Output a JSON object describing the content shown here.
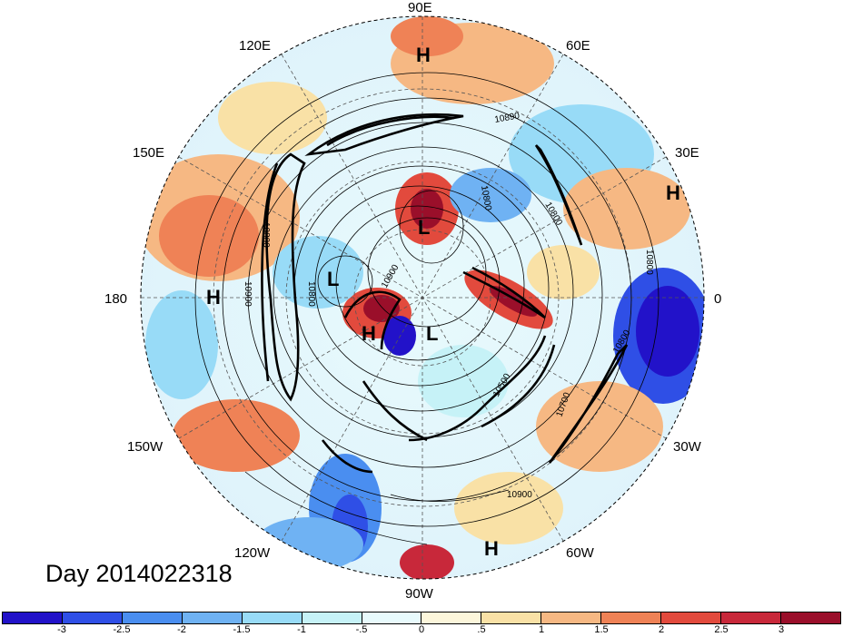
{
  "map": {
    "longitude_labels": {
      "east90": "90E",
      "east120": "120E",
      "east60": "60E",
      "east150": "150E",
      "east30": "30E",
      "lon180": "180",
      "lon0": "0",
      "west150": "150W",
      "west30": "30W",
      "west120": "120W",
      "west60": "60W",
      "west90": "90W"
    },
    "markers": [
      {
        "text": "H"
      },
      {
        "text": "H"
      },
      {
        "text": "L"
      },
      {
        "text": "L"
      },
      {
        "text": "H"
      },
      {
        "text": "H"
      },
      {
        "text": "L"
      },
      {
        "text": "H"
      }
    ],
    "contour_labels": [
      "10890",
      "10800",
      "10800",
      "10800",
      "10900",
      "10800",
      "10900",
      "10800",
      "10700",
      "10500",
      "10800",
      "10900"
    ],
    "colors": {
      "anomaly_scale": [
        "#2212c9",
        "#2f4fe6",
        "#4a8ef0",
        "#6fb2f3",
        "#98dbf7",
        "#c6f2f7",
        "#e8fafc",
        "#fcf6db",
        "#f9e1a6",
        "#f6b883",
        "#ef8256",
        "#e24a3d",
        "#c8283a",
        "#9a0f2a"
      ],
      "background": "#ffffff"
    }
  },
  "title": "Day 2014022318",
  "colorbar": {
    "ticks": [
      "-3",
      "-2.5",
      "-2",
      "-1.5",
      "-1",
      "-.5",
      "0",
      ".5",
      "1",
      "1.5",
      "2",
      "2.5",
      "3"
    ]
  }
}
